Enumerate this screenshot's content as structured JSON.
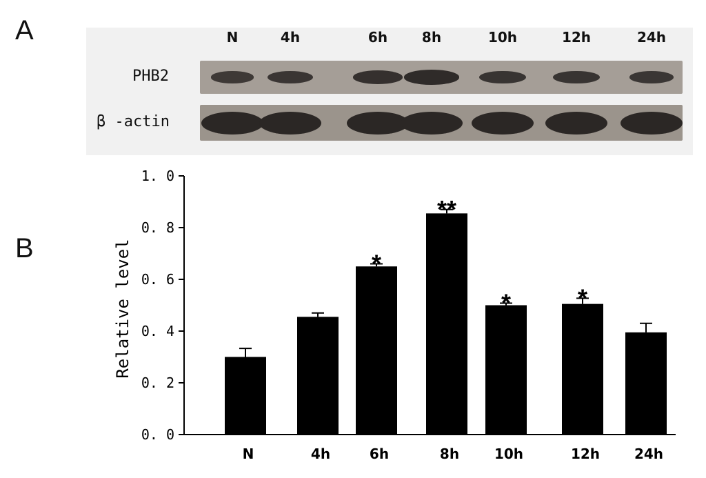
{
  "panel_a": {
    "letter": "A",
    "lanes": [
      "N",
      "4h",
      "6h",
      "8h",
      "10h",
      "12h",
      "24h"
    ],
    "rows": [
      {
        "label": "PHB2",
        "band_intensity": [
          0.3,
          0.46,
          0.65,
          0.86,
          0.5,
          0.51,
          0.4
        ]
      },
      {
        "label": "β -actin",
        "band_intensity": [
          1,
          1,
          1,
          1,
          1,
          1,
          1
        ]
      }
    ],
    "colors": {
      "background": "#f1f1f1",
      "membrane": "#a59e97",
      "band": "#2b2725"
    }
  },
  "panel_b": {
    "letter": "B"
  },
  "chart_data": {
    "type": "bar",
    "categories": [
      "N",
      "4h",
      "6h",
      "8h",
      "10h",
      "12h",
      "24h"
    ],
    "values": [
      0.3,
      0.455,
      0.65,
      0.855,
      0.5,
      0.505,
      0.395
    ],
    "errors": [
      0.033,
      0.015,
      0.01,
      0.015,
      0.008,
      0.022,
      0.035
    ],
    "significance": [
      "",
      "",
      "*",
      "**",
      "*",
      "*",
      ""
    ],
    "title": "",
    "xlabel": "",
    "ylabel": "Relative level",
    "ylim": [
      0,
      1.0
    ],
    "yticks": [
      0.0,
      0.2,
      0.4,
      0.6,
      0.8,
      1.0
    ],
    "ytick_labels": [
      "0. 0",
      "0. 2",
      "0. 4",
      "0. 6",
      "0. 8",
      "1. 0"
    ],
    "grid": false,
    "legend": "none",
    "bar_color": "#000000"
  }
}
